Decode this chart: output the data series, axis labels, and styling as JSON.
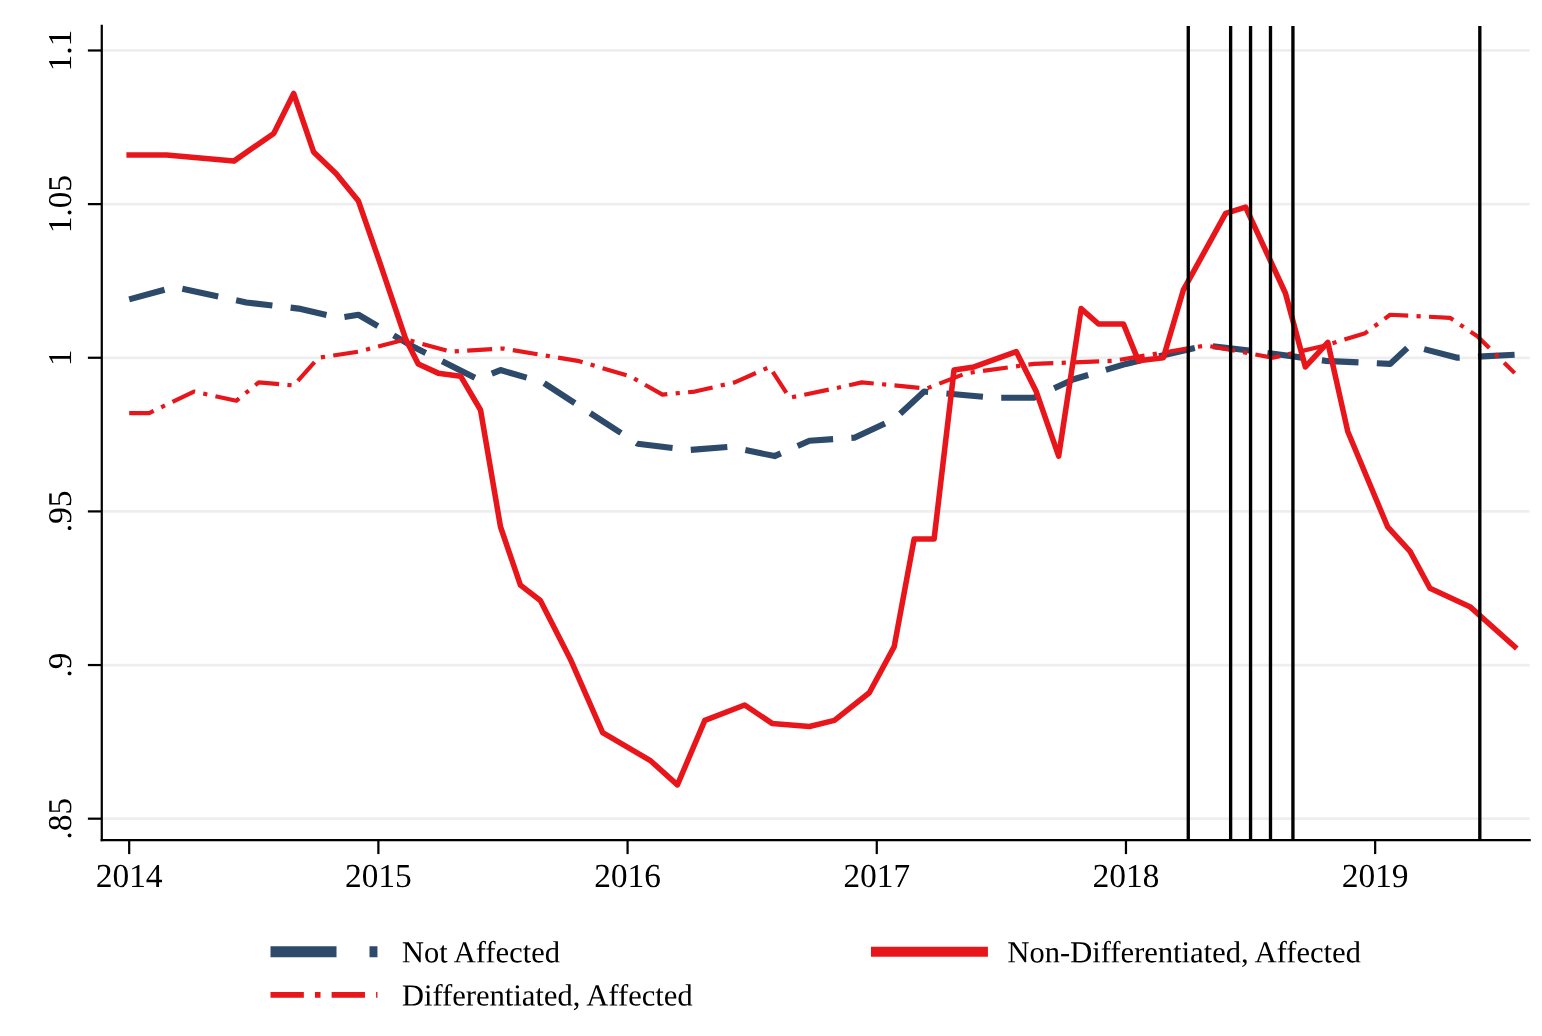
{
  "chart_data": {
    "type": "line",
    "xlim": [
      2013.89,
      2019.62
    ],
    "xticks": [
      2014,
      2015,
      2016,
      2017,
      2018,
      2019
    ],
    "ylim": [
      0.843,
      1.108
    ],
    "yticks": [
      {
        "value": 0.85,
        "label": ".85"
      },
      {
        "value": 0.9,
        "label": ".9"
      },
      {
        "value": 0.95,
        "label": ".95"
      },
      1,
      1.05,
      1.1
    ],
    "grid": "y",
    "legend": "bottom",
    "series": [
      {
        "name": "Not Affected",
        "color": "#2e4a6b",
        "line_style": "dashed",
        "x": [
          2014.0,
          2014.18,
          2014.47,
          2014.68,
          2014.84,
          2014.92,
          2015.13,
          2015.4,
          2015.49,
          2015.66,
          2015.85,
          2016.04,
          2016.25,
          2016.41,
          2016.59,
          2016.73,
          2016.91,
          2017.07,
          2017.19,
          2017.47,
          2017.63,
          2017.79,
          2018.0,
          2018.32,
          2018.53,
          2018.8,
          2019.06,
          2019.14,
          2019.33,
          2019.56
        ],
        "values": [
          1.019,
          1.023,
          1.018,
          1.016,
          1.013,
          1.014,
          1.004,
          0.993,
          0.996,
          0.992,
          0.982,
          0.972,
          0.97,
          0.971,
          0.968,
          0.973,
          0.974,
          0.98,
          0.989,
          0.987,
          0.987,
          0.993,
          0.998,
          1.004,
          1.002,
          0.999,
          0.998,
          1.004,
          1.0,
          1.001
        ]
      },
      {
        "name": "Non-Differentiated, Affected",
        "color": "#e8161b",
        "line_style": "solid",
        "x": [
          2014.0,
          2014.15,
          2014.42,
          2014.58,
          2014.66,
          2014.74,
          2014.83,
          2014.92,
          2015.01,
          2015.11,
          2015.16,
          2015.24,
          2015.33,
          2015.41,
          2015.49,
          2015.57,
          2015.65,
          2015.77,
          2015.9,
          2016.09,
          2016.2,
          2016.31,
          2016.47,
          2016.58,
          2016.73,
          2016.83,
          2016.97,
          2017.07,
          2017.15,
          2017.23,
          2017.31,
          2017.39,
          2017.56,
          2017.64,
          2017.73,
          2017.82,
          2017.89,
          2017.99,
          2018.05,
          2018.15,
          2018.23,
          2018.4,
          2018.48,
          2018.64,
          2018.72,
          2018.81,
          2018.89,
          2019.05,
          2019.14,
          2019.22,
          2019.38,
          2019.56
        ],
        "values": [
          1.066,
          1.066,
          1.064,
          1.073,
          1.086,
          1.067,
          1.06,
          1.051,
          1.03,
          1.006,
          0.998,
          0.995,
          0.994,
          0.983,
          0.945,
          0.926,
          0.921,
          0.902,
          0.878,
          0.869,
          0.861,
          0.882,
          0.887,
          0.881,
          0.88,
          0.882,
          0.891,
          0.906,
          0.941,
          0.941,
          0.996,
          0.997,
          1.002,
          0.989,
          0.968,
          1.016,
          1.011,
          1.011,
          0.999,
          1.0,
          1.022,
          1.047,
          1.049,
          1.021,
          0.997,
          1.005,
          0.976,
          0.945,
          0.937,
          0.925,
          0.919,
          0.906
        ]
      },
      {
        "name": "Differentiated, Affected",
        "color": "#e8161b",
        "line_style": "dashdot",
        "x": [
          2014.0,
          2014.08,
          2014.26,
          2014.43,
          2014.52,
          2014.66,
          2014.76,
          2014.92,
          2015.11,
          2015.29,
          2015.5,
          2015.8,
          2016.01,
          2016.14,
          2016.27,
          2016.43,
          2016.57,
          2016.65,
          2016.83,
          2016.94,
          2017.2,
          2017.36,
          2017.63,
          2017.95,
          2018.32,
          2018.59,
          2018.8,
          2018.96,
          2019.06,
          2019.3,
          2019.41,
          2019.56
        ],
        "values": [
          0.982,
          0.982,
          0.989,
          0.986,
          0.992,
          0.991,
          1.0,
          1.002,
          1.006,
          1.002,
          1.003,
          0.999,
          0.994,
          0.988,
          0.989,
          0.992,
          0.997,
          0.987,
          0.99,
          0.992,
          0.99,
          0.995,
          0.998,
          0.999,
          1.004,
          1.0,
          1.004,
          1.008,
          1.014,
          1.013,
          1.007,
          0.995
        ]
      }
    ],
    "ref_lines": [
      {
        "axis": "x",
        "value": 2018.25,
        "color": "#000000"
      },
      {
        "axis": "x",
        "value": 2018.42,
        "color": "#000000"
      },
      {
        "axis": "x",
        "value": 2018.5,
        "color": "#000000"
      },
      {
        "axis": "x",
        "value": 2018.58,
        "color": "#000000"
      },
      {
        "axis": "x",
        "value": 2018.67,
        "color": "#000000"
      },
      {
        "axis": "x",
        "value": 2019.42,
        "color": "#000000"
      }
    ]
  }
}
